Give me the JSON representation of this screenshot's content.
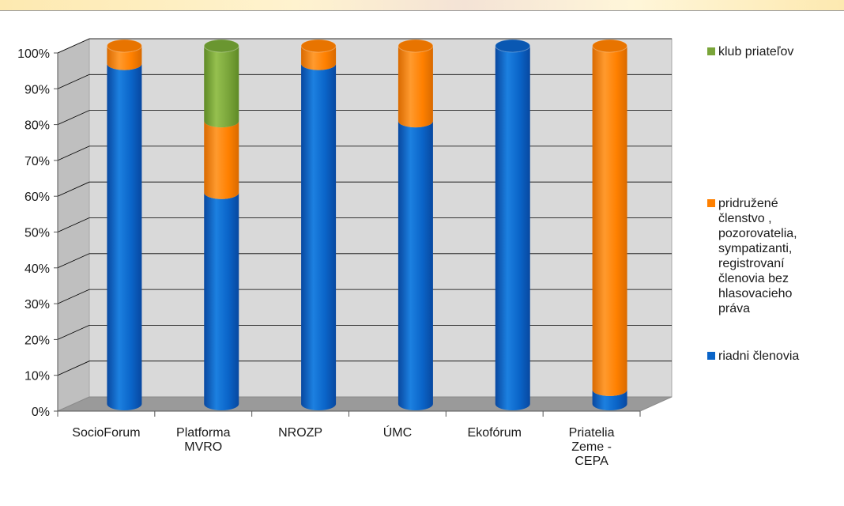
{
  "chart_data": {
    "type": "bar",
    "stacked": true,
    "percent": true,
    "three_d": true,
    "categories": [
      [
        "SocioForum"
      ],
      [
        "Platforma",
        "MVRO"
      ],
      [
        "NROZP"
      ],
      [
        "ÚMC"
      ],
      [
        "Ekofórum"
      ],
      [
        "Priatelia",
        "Zeme -",
        "CEPA"
      ]
    ],
    "series": [
      {
        "name": [
          "riadni členovia"
        ],
        "color": "#0a64c8",
        "values": [
          95,
          59,
          95,
          79,
          100,
          4
        ]
      },
      {
        "name": [
          "pridružené",
          "členstvo ,",
          "pozorovatelia,",
          "sympatizanti,",
          "registrovaní",
          "členovia bez",
          "hlasovacieho",
          "práva"
        ],
        "color": "#ff8000",
        "values": [
          5,
          20,
          5,
          21,
          0,
          96
        ]
      },
      {
        "name": [
          "klub priateľov"
        ],
        "color": "#7aa53a",
        "values": [
          0,
          21,
          0,
          0,
          0,
          0
        ]
      }
    ],
    "ylim": [
      0,
      100
    ],
    "yticks": [
      "0%",
      "10%",
      "20%",
      "30%",
      "40%",
      "50%",
      "60%",
      "70%",
      "80%",
      "90%",
      "100%"
    ],
    "grid": true,
    "legend": "right"
  }
}
